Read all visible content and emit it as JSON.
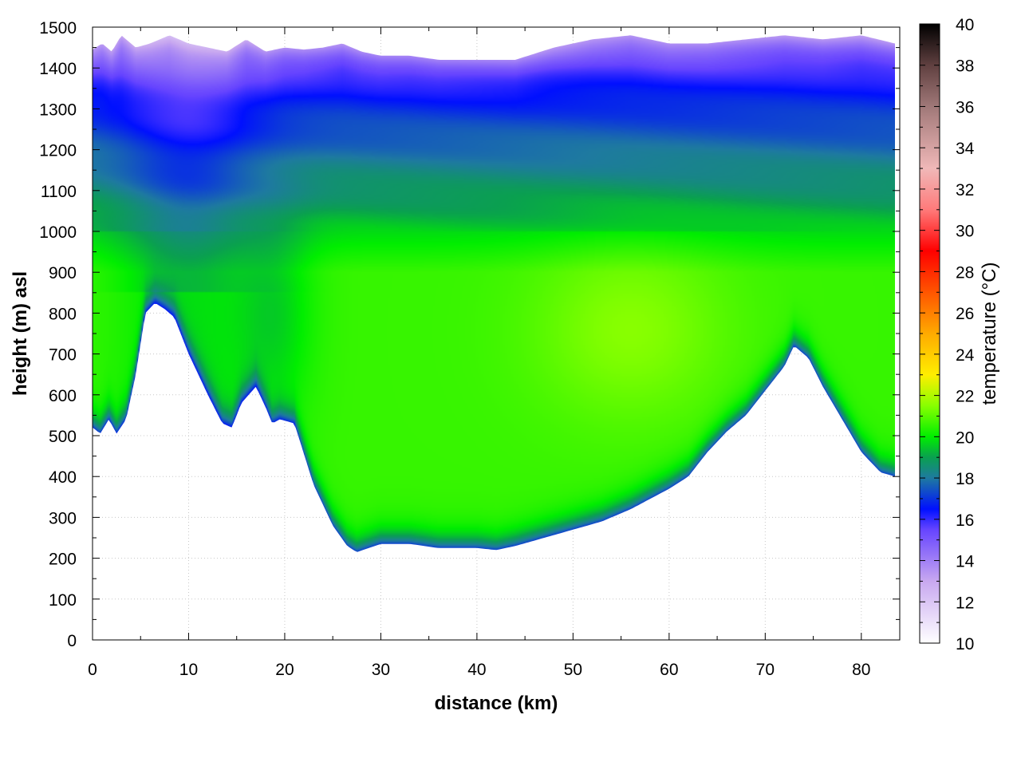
{
  "chart_data": {
    "type": "heatmap",
    "title": "",
    "xlabel": "distance (km)",
    "ylabel": "height (m) asl",
    "colorbar_label": "temperature (°C)",
    "xlim": [
      0,
      84
    ],
    "ylim": [
      0,
      1500
    ],
    "x_ticks": [
      0,
      10,
      20,
      30,
      40,
      50,
      60,
      70,
      80
    ],
    "y_ticks": [
      0,
      100,
      200,
      300,
      400,
      500,
      600,
      700,
      800,
      900,
      1000,
      1100,
      1200,
      1300,
      1400,
      1500
    ],
    "colorbar_range": [
      10,
      40
    ],
    "colorbar_ticks": [
      10,
      12,
      14,
      16,
      18,
      20,
      22,
      24,
      26,
      28,
      30,
      32,
      34,
      36,
      38,
      40
    ],
    "colormap": [
      {
        "t": 10,
        "color": "#ffffff"
      },
      {
        "t": 13,
        "color": "#c8a8f0"
      },
      {
        "t": 15.5,
        "color": "#6644ff"
      },
      {
        "t": 16.5,
        "color": "#0010ff"
      },
      {
        "t": 18,
        "color": "#1e7aa0"
      },
      {
        "t": 19,
        "color": "#0aa050"
      },
      {
        "t": 20,
        "color": "#00ee00"
      },
      {
        "t": 21.5,
        "color": "#88ff00"
      },
      {
        "t": 23,
        "color": "#ffee00"
      },
      {
        "t": 25,
        "color": "#ffaa00"
      },
      {
        "t": 27,
        "color": "#ff5500"
      },
      {
        "t": 29,
        "color": "#ff0000"
      },
      {
        "t": 31,
        "color": "#ff7a7a"
      },
      {
        "t": 33,
        "color": "#f0b8b8"
      },
      {
        "t": 36,
        "color": "#a07878"
      },
      {
        "t": 38,
        "color": "#604040"
      },
      {
        "t": 40,
        "color": "#000000"
      }
    ],
    "terrain": {
      "distance_km": [
        0,
        0.8,
        1.7,
        2.5,
        3.5,
        4.5,
        5.5,
        6.5,
        7.5,
        8.5,
        10,
        12,
        13.5,
        14.5,
        15.5,
        17,
        18,
        18.7,
        19.5,
        21,
        23,
        25,
        26.5,
        27.5,
        30,
        33,
        36,
        40,
        42,
        44,
        47,
        50,
        53,
        56,
        60,
        62,
        64,
        66,
        68,
        70,
        72,
        73,
        74.5,
        76,
        78,
        80,
        82,
        83.5
      ],
      "height_m": [
        520,
        505,
        540,
        505,
        540,
        650,
        800,
        825,
        810,
        790,
        700,
        600,
        530,
        520,
        580,
        620,
        570,
        530,
        540,
        530,
        380,
        280,
        230,
        215,
        235,
        235,
        225,
        225,
        220,
        230,
        250,
        270,
        290,
        320,
        370,
        400,
        460,
        510,
        550,
        610,
        670,
        720,
        690,
        620,
        540,
        460,
        410,
        400
      ]
    },
    "top_boundary": {
      "distance_km": [
        0,
        1,
        2,
        3,
        4.5,
        6,
        8,
        10,
        12,
        14,
        16,
        18,
        20,
        22,
        24,
        26,
        28,
        30,
        33,
        36,
        40,
        44,
        48,
        52,
        56,
        60,
        64,
        68,
        72,
        76,
        80,
        83.5
      ],
      "height_m": [
        1445,
        1460,
        1440,
        1480,
        1450,
        1460,
        1480,
        1460,
        1450,
        1440,
        1470,
        1440,
        1450,
        1445,
        1450,
        1460,
        1440,
        1430,
        1430,
        1420,
        1420,
        1420,
        1450,
        1470,
        1480,
        1460,
        1460,
        1470,
        1480,
        1470,
        1480,
        1460
      ]
    }
  }
}
